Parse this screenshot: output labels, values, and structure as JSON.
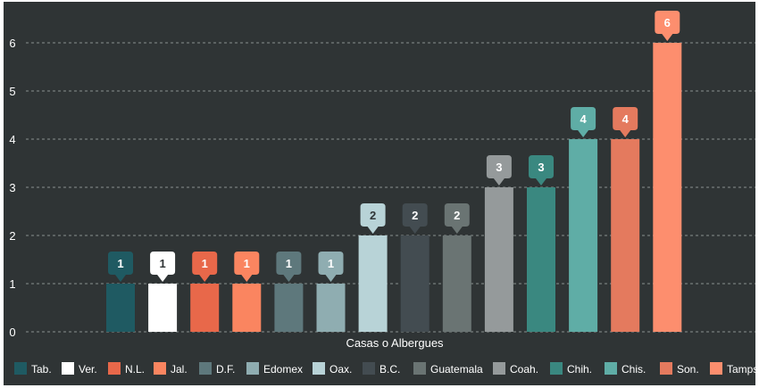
{
  "chart_data": {
    "type": "bar",
    "xlabel": "Casas o Albergues",
    "ylabel": "",
    "ylim": [
      0,
      6
    ],
    "yticks": [
      0,
      1,
      2,
      3,
      4,
      5,
      6
    ],
    "grid": true,
    "legend_position": "bottom",
    "categories": [
      "Tab.",
      "Ver.",
      "N.L.",
      "Jal.",
      "D.F.",
      "Edomex",
      "Oax.",
      "B.C.",
      "Guatemala",
      "Coah.",
      "Chih.",
      "Chis.",
      "Son.",
      "Tamps"
    ],
    "values": [
      1,
      1,
      1,
      1,
      1,
      1,
      2,
      2,
      2,
      3,
      3,
      4,
      4,
      6
    ],
    "colors": [
      "#1f5a62",
      "#ffffff",
      "#e8684a",
      "#fa8560",
      "#5e787c",
      "#8fadb1",
      "#b8d3d7",
      "#434c51",
      "#6a7473",
      "#959a9b",
      "#3a8880",
      "#5fada6",
      "#e47a5e",
      "#fd8e6e"
    ],
    "label_text_colors": [
      "#ffffff",
      "#2f3435",
      "#ffffff",
      "#ffffff",
      "#ffffff",
      "#ffffff",
      "#2f3435",
      "#ffffff",
      "#ffffff",
      "#ffffff",
      "#ffffff",
      "#ffffff",
      "#ffffff",
      "#ffffff"
    ]
  }
}
